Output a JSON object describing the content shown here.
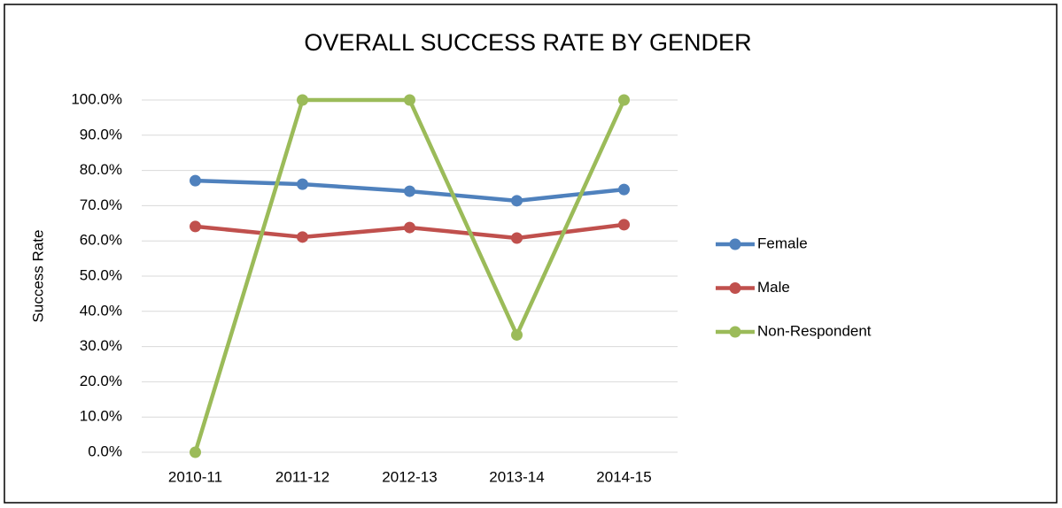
{
  "chart_data": {
    "type": "line",
    "title": "OVERALL SUCCESS RATE BY GENDER",
    "y_label": "Success Rate",
    "categories": [
      "2010-11",
      "2011-12",
      "2012-13",
      "2013-14",
      "2014-15"
    ],
    "series": [
      {
        "name": "Female",
        "color": "#4f81bd",
        "values": [
          77.1,
          76.1,
          74.1,
          71.4,
          74.6
        ]
      },
      {
        "name": "Male",
        "color": "#c0504d",
        "values": [
          64.1,
          61.1,
          63.8,
          60.8,
          64.6
        ]
      },
      {
        "name": "Non-Respondent",
        "color": "#9bbb59",
        "values": [
          0,
          100,
          100,
          33.3,
          100
        ]
      }
    ],
    "ylim": [
      0,
      100
    ],
    "yticks": [
      {
        "value": 0,
        "label": "0.0%"
      },
      {
        "value": 10,
        "label": "10.0%"
      },
      {
        "value": 20,
        "label": "20.0%"
      },
      {
        "value": 30,
        "label": "30.0%"
      },
      {
        "value": 40,
        "label": "40.0%"
      },
      {
        "value": 50,
        "label": "50.0%"
      },
      {
        "value": 60,
        "label": "60.0%"
      },
      {
        "value": 70,
        "label": "70.0%"
      },
      {
        "value": 80,
        "label": "80.0%"
      },
      {
        "value": 90,
        "label": "90.0%"
      },
      {
        "value": 100,
        "label": "100.0%"
      }
    ],
    "grid": true,
    "legend": "right"
  }
}
